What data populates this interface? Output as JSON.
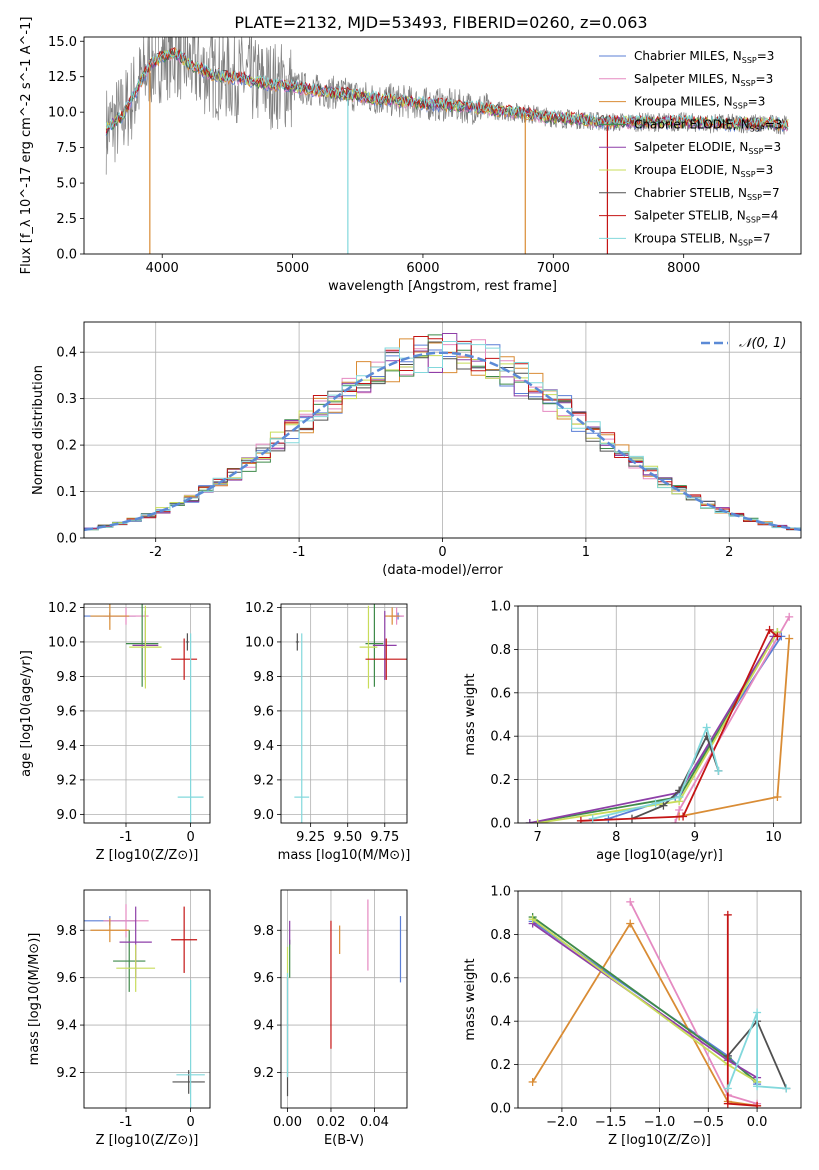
{
  "figure_title": "PLATE=2132, MJD=53493, FIBERID=0260, z=0.063",
  "colors": {
    "Chabrier MILES": "#5b7fd6",
    "Salpeter MILES": "#e58ac1",
    "Kroupa MILES": "#d98c35",
    "Chabrier ELODIE": "#3f8a4a",
    "Salpeter ELODIE": "#8e3fa8",
    "Kroupa ELODIE": "#c8dc5a",
    "Chabrier STELIB": "#505050",
    "Salpeter STELIB": "#c41414",
    "Kroupa STELIB": "#82d8dc",
    "data": "#808080",
    "normal": "#5b8ad6"
  },
  "chart_data": [
    {
      "id": "spectrum",
      "type": "line",
      "title": "PLATE=2132, MJD=53493, FIBERID=0260, z=0.063",
      "xlabel": "wavelength [Angstrom, rest frame]",
      "ylabel": "Flux [f_λ 10^-17 erg cm^-2 s^-1 A^-1]",
      "xlim": [
        3400,
        8900
      ],
      "ylim": [
        0,
        15.3
      ],
      "xticks": [
        4000,
        5000,
        6000,
        7000,
        8000
      ],
      "yticks": [
        0.0,
        2.5,
        5.0,
        7.5,
        10.0,
        12.5,
        15.0
      ],
      "legend_position": "top-right",
      "series": [
        {
          "name": "Chabrier MILES, N_SSP=3"
        },
        {
          "name": "Salpeter MILES, N_SSP=3"
        },
        {
          "name": "Kroupa MILES, N_SSP=3"
        },
        {
          "name": "Chabrier ELODIE, N_SSP=3"
        },
        {
          "name": "Salpeter ELODIE, N_SSP=3"
        },
        {
          "name": "Kroupa ELODIE, N_SSP=3"
        },
        {
          "name": "Chabrier STELIB, N_SSP=7"
        },
        {
          "name": "Salpeter STELIB, N_SSP=4"
        },
        {
          "name": "Kroupa STELIB, N_SSP=7"
        }
      ],
      "model_continuum": {
        "x": [
          3570,
          3700,
          3800,
          3900,
          4000,
          4100,
          4200,
          4300,
          4400,
          4600,
          4800,
          5000,
          5200,
          5400,
          5600,
          5800,
          6000,
          6200,
          6400,
          6600,
          6800,
          7000,
          7200,
          7400,
          7600,
          7800,
          8000,
          8200,
          8400,
          8600,
          8800
        ],
        "y": [
          8.8,
          9.8,
          11.5,
          13.3,
          13.9,
          14.2,
          13.4,
          13.0,
          12.6,
          12.4,
          12.0,
          11.8,
          11.5,
          11.3,
          11.0,
          10.8,
          10.6,
          10.5,
          10.3,
          10.1,
          9.9,
          9.6,
          9.5,
          9.3,
          9.3,
          9.3,
          9.3,
          9.2,
          9.2,
          9.2,
          9.1
        ]
      },
      "data_spikes": [
        {
          "x": 3905,
          "y": 0
        },
        {
          "x": 5424,
          "y": 0
        },
        {
          "x": 6785,
          "y": 0
        },
        {
          "x": 7415,
          "y": 0
        }
      ]
    },
    {
      "id": "residuals",
      "type": "line",
      "xlabel": "(data-model)/error",
      "ylabel": "Normed distribution",
      "xlim": [
        -2.5,
        2.5
      ],
      "ylim": [
        0,
        0.465
      ],
      "xticks": [
        -2,
        -1,
        0,
        1,
        2
      ],
      "yticks": [
        0.0,
        0.1,
        0.2,
        0.3,
        0.4
      ],
      "legend": "𝒩(0, 1)",
      "legend_position": "top-right",
      "bin_width": 0.1,
      "bin_start": -2.5
    },
    {
      "id": "age_vs_Z",
      "type": "scatter",
      "xlabel": "Z [log10(Z/Z⊙)]",
      "ylabel": "age [log10(age/yr)]",
      "xlim": [
        -1.65,
        0.3
      ],
      "ylim": [
        8.95,
        10.22
      ],
      "xticks": [
        -1,
        0
      ],
      "yticks": [
        9.0,
        9.2,
        9.4,
        9.6,
        9.8,
        10.0,
        10.2
      ],
      "errorbars": [
        {
          "series": "Chabrier MILES",
          "x": -1.25,
          "xerr": 0.4,
          "y": 10.15,
          "yerr": 0.02
        },
        {
          "series": "Salpeter MILES",
          "x": -1.0,
          "xerr": 0.35,
          "y": 10.15,
          "yerr": 0.05
        },
        {
          "series": "Kroupa MILES",
          "x": -1.25,
          "xerr": 0.3,
          "y": 10.15,
          "yerr": 0.08
        },
        {
          "series": "Chabrier ELODIE",
          "x": -0.75,
          "xerr": 0.25,
          "y": 9.99,
          "yerr": 0.25
        },
        {
          "series": "Salpeter ELODIE",
          "x": -0.7,
          "xerr": 0.2,
          "y": 9.98,
          "yerr": 0.2
        },
        {
          "series": "Kroupa ELODIE",
          "x": -0.7,
          "xerr": 0.25,
          "y": 9.97,
          "yerr": 0.24
        },
        {
          "series": "Chabrier STELIB",
          "x": -0.05,
          "xerr": 0.02,
          "y": 10.0,
          "yerr": 0.05
        },
        {
          "series": "Salpeter STELIB",
          "x": -0.1,
          "xerr": 0.2,
          "y": 9.9,
          "yerr": 0.12
        },
        {
          "series": "Kroupa STELIB",
          "x": 0.0,
          "xerr": 0.2,
          "y": 9.1,
          "yerr": 0.95
        }
      ]
    },
    {
      "id": "age_vs_mass",
      "type": "scatter",
      "xlabel": "mass [log10(M/M⊙)]",
      "xlim": [
        9.05,
        9.9
      ],
      "ylim": [
        8.95,
        10.22
      ],
      "xticks": [
        9.25,
        9.5,
        9.75
      ],
      "xticklabels": [
        "9.25",
        "9.50",
        "9.75"
      ],
      "yticks": [
        9.0,
        9.2,
        9.4,
        9.6,
        9.8,
        10.0,
        10.2
      ],
      "errorbars": [
        {
          "series": "Chabrier MILES",
          "x": 9.84,
          "xerr": 0.03,
          "y": 10.15,
          "yerr": 0.02
        },
        {
          "series": "Salpeter MILES",
          "x": 9.83,
          "xerr": 0.05,
          "y": 10.15,
          "yerr": 0.05
        },
        {
          "series": "Kroupa MILES",
          "x": 9.8,
          "xerr": 0.05,
          "y": 10.15,
          "yerr": 0.05
        },
        {
          "series": "Chabrier ELODIE",
          "x": 9.68,
          "xerr": 0.06,
          "y": 9.99,
          "yerr": 0.25
        },
        {
          "series": "Salpeter ELODIE",
          "x": 9.75,
          "xerr": 0.08,
          "y": 9.98,
          "yerr": 0.2
        },
        {
          "series": "Kroupa ELODIE",
          "x": 9.64,
          "xerr": 0.06,
          "y": 9.97,
          "yerr": 0.24
        },
        {
          "series": "Chabrier STELIB",
          "x": 9.16,
          "xerr": 0.01,
          "y": 10.0,
          "yerr": 0.05
        },
        {
          "series": "Salpeter STELIB",
          "x": 9.76,
          "xerr": 0.14,
          "y": 9.9,
          "yerr": 0.12
        },
        {
          "series": "Kroupa STELIB",
          "x": 9.19,
          "xerr": 0.05,
          "y": 9.1,
          "yerr": 0.95
        }
      ]
    },
    {
      "id": "weight_vs_age",
      "type": "line",
      "xlabel": "age [log10(age/yr)]",
      "ylabel": "mass weight",
      "xlim": [
        6.75,
        10.35
      ],
      "ylim": [
        0,
        1.0
      ],
      "xticks": [
        7,
        8,
        9,
        10
      ],
      "yticks": [
        0.0,
        0.2,
        0.4,
        0.6,
        0.8,
        1.0
      ],
      "series": [
        {
          "name": "Chabrier MILES",
          "x": [
            7.9,
            8.75,
            10.1
          ],
          "y": [
            0.02,
            0.12,
            0.86
          ]
        },
        {
          "name": "Salpeter MILES",
          "x": [
            8.75,
            8.8,
            10.2
          ],
          "y": [
            0.0,
            0.06,
            0.95
          ]
        },
        {
          "name": "Kroupa MILES",
          "x": [
            8.8,
            10.05,
            10.2
          ],
          "y": [
            0.03,
            0.12,
            0.85
          ]
        },
        {
          "name": "Chabrier ELODIE",
          "x": [
            6.9,
            8.8,
            10.05
          ],
          "y": [
            0.0,
            0.12,
            0.88
          ]
        },
        {
          "name": "Salpeter ELODIE",
          "x": [
            6.9,
            8.8,
            10.0
          ],
          "y": [
            0.0,
            0.14,
            0.86
          ]
        },
        {
          "name": "Kroupa ELODIE",
          "x": [
            7.0,
            8.8,
            10.05
          ],
          "y": [
            0.0,
            0.1,
            0.88
          ]
        },
        {
          "name": "Chabrier STELIB",
          "x": [
            8.2,
            8.6,
            8.8,
            9.15,
            9.3
          ],
          "y": [
            0.02,
            0.08,
            0.15,
            0.4,
            0.24
          ]
        },
        {
          "name": "Salpeter STELIB",
          "x": [
            7.55,
            8.85,
            9.95,
            10.05
          ],
          "y": [
            0.01,
            0.03,
            0.89,
            0.86
          ]
        },
        {
          "name": "Kroupa STELIB",
          "x": [
            7.7,
            8.5,
            8.8,
            9.15,
            9.3
          ],
          "y": [
            0.02,
            0.09,
            0.12,
            0.44,
            0.24
          ]
        }
      ]
    },
    {
      "id": "mass_vs_Z",
      "type": "scatter",
      "xlabel": "Z [log10(Z/Z⊙)]",
      "ylabel": "mass [log10(M/M⊙)]",
      "xlim": [
        -1.65,
        0.3
      ],
      "ylim": [
        9.05,
        9.97
      ],
      "xticks": [
        -1,
        0
      ],
      "yticks": [
        9.2,
        9.4,
        9.6,
        9.8
      ],
      "errorbars": [
        {
          "series": "Chabrier MILES",
          "x": -1.25,
          "xerr": 0.4,
          "y": 9.84,
          "yerr": 0.02
        },
        {
          "series": "Salpeter MILES",
          "x": -1.0,
          "xerr": 0.35,
          "y": 9.84,
          "yerr": 0.07
        },
        {
          "series": "Kroupa MILES",
          "x": -1.25,
          "xerr": 0.3,
          "y": 9.8,
          "yerr": 0.05
        },
        {
          "series": "Chabrier ELODIE",
          "x": -0.95,
          "xerr": 0.25,
          "y": 9.67,
          "yerr": 0.13
        },
        {
          "series": "Salpeter ELODIE",
          "x": -0.85,
          "xerr": 0.25,
          "y": 9.75,
          "yerr": 0.15
        },
        {
          "series": "Kroupa ELODIE",
          "x": -0.85,
          "xerr": 0.3,
          "y": 9.64,
          "yerr": 0.1
        },
        {
          "series": "Chabrier STELIB",
          "x": -0.03,
          "xerr": 0.25,
          "y": 9.16,
          "yerr": 0.05
        },
        {
          "series": "Salpeter STELIB",
          "x": -0.1,
          "xerr": 0.2,
          "y": 9.76,
          "yerr": 0.14
        },
        {
          "series": "Kroupa STELIB",
          "x": 0.0,
          "xerr": 0.22,
          "y": 9.19,
          "yerr": 0.4
        }
      ]
    },
    {
      "id": "mass_vs_ebv",
      "type": "scatter",
      "xlabel": "E(B-V)",
      "xlim": [
        -0.003,
        0.055
      ],
      "ylim": [
        9.05,
        9.97
      ],
      "xticks": [
        0.0,
        0.02,
        0.04
      ],
      "xticklabels": [
        "0.00",
        "0.02",
        "0.04"
      ],
      "yticks": [
        9.2,
        9.4,
        9.6,
        9.8
      ],
      "errorbars": [
        {
          "series": "Chabrier MILES",
          "x": 0.052,
          "y": 9.72,
          "yerr": 0.14
        },
        {
          "series": "Salpeter MILES",
          "x": 0.037,
          "y": 9.78,
          "yerr": 0.15
        },
        {
          "series": "Kroupa MILES",
          "x": 0.024,
          "y": 9.76,
          "yerr": 0.06
        },
        {
          "series": "Chabrier ELODIE",
          "x": 0.001,
          "y": 9.68,
          "yerr": 0.08
        },
        {
          "series": "Salpeter ELODIE",
          "x": 0.001,
          "y": 9.79,
          "yerr": 0.05
        },
        {
          "series": "Kroupa ELODIE",
          "x": 0.0,
          "y": 9.66,
          "yerr": 0.07
        },
        {
          "series": "Chabrier STELIB",
          "x": 0.0,
          "y": 9.35,
          "yerr": 0.25
        },
        {
          "series": "Salpeter STELIB",
          "x": 0.02,
          "y": 9.57,
          "yerr": 0.27
        },
        {
          "series": "Kroupa STELIB",
          "x": 0.0,
          "y": 9.4,
          "yerr": 0.22
        }
      ]
    },
    {
      "id": "weight_vs_Z",
      "type": "line",
      "xlabel": "Z [log10(Z/Z⊙)]",
      "ylabel": "mass weight",
      "xlim": [
        -2.45,
        0.45
      ],
      "ylim": [
        0,
        1.0
      ],
      "xticks": [
        -2.0,
        -1.5,
        -1.0,
        -0.5,
        0.0
      ],
      "yticks": [
        0.0,
        0.2,
        0.4,
        0.6,
        0.8,
        1.0
      ],
      "series": [
        {
          "name": "Chabrier MILES",
          "x": [
            -2.3,
            -0.3,
            0.0
          ],
          "y": [
            0.86,
            0.24,
            0.11
          ]
        },
        {
          "name": "Salpeter MILES",
          "x": [
            -1.3,
            -0.3,
            0.0
          ],
          "y": [
            0.95,
            0.06,
            0.02
          ]
        },
        {
          "name": "Kroupa MILES",
          "x": [
            -2.3,
            -1.3,
            -0.3,
            0.0
          ],
          "y": [
            0.12,
            0.85,
            0.03,
            0.01
          ]
        },
        {
          "name": "Chabrier ELODIE",
          "x": [
            -2.3,
            -0.3,
            0.0
          ],
          "y": [
            0.88,
            0.23,
            0.12
          ]
        },
        {
          "name": "Salpeter ELODIE",
          "x": [
            -2.3,
            -0.3,
            0.0
          ],
          "y": [
            0.85,
            0.22,
            0.14
          ]
        },
        {
          "name": "Kroupa ELODIE",
          "x": [
            -2.3,
            -0.3,
            0.0
          ],
          "y": [
            0.87,
            0.2,
            0.12
          ]
        },
        {
          "name": "Chabrier STELIB",
          "x": [
            -0.3,
            0.0,
            0.3
          ],
          "y": [
            0.24,
            0.4,
            0.09
          ]
        },
        {
          "name": "Salpeter STELIB",
          "x": [
            -0.3,
            -0.3,
            0.0
          ],
          "y": [
            0.89,
            0.02,
            0.01
          ]
        },
        {
          "name": "Kroupa STELIB",
          "x": [
            -0.3,
            0.0,
            0.0,
            0.3
          ],
          "y": [
            0.09,
            0.44,
            0.1,
            0.09
          ]
        }
      ]
    }
  ]
}
